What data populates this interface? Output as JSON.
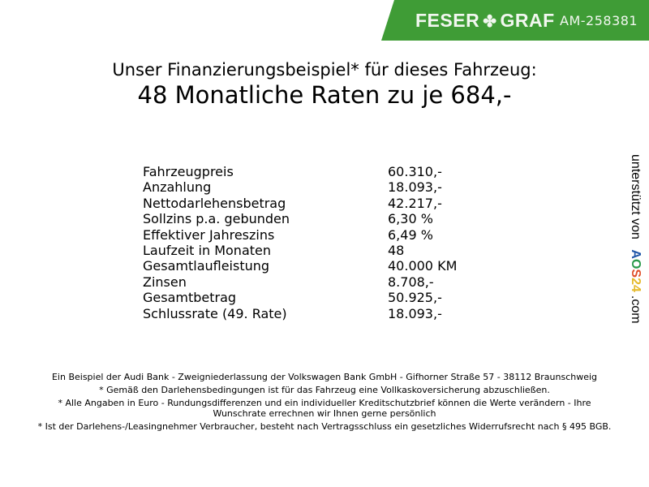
{
  "header": {
    "brand_left": "FESER",
    "brand_right": "GRAF",
    "listing_id": "AM-258381",
    "brand_color": "#3f9c36"
  },
  "title": {
    "line1": "Unser Finanzierungsbeispiel* für dieses Fahrzeug:",
    "line2": "48 Monatliche Raten zu je 684,-"
  },
  "finance": [
    {
      "label": "Fahrzeugpreis",
      "value": "60.310,-"
    },
    {
      "label": "Anzahlung",
      "value": "18.093,-"
    },
    {
      "label": "Nettodarlehensbetrag",
      "value": "42.217,-"
    },
    {
      "label": "Sollzins p.a. gebunden",
      "value": "6,30 %"
    },
    {
      "label": "Effektiver Jahreszins",
      "value": "6,49 %"
    },
    {
      "label": "Laufzeit in Monaten",
      "value": "48"
    },
    {
      "label": "Gesamtlaufleistung",
      "value": "40.000 KM"
    },
    {
      "label": "Zinsen",
      "value": "8.708,-"
    },
    {
      "label": "Gesamtbetrag",
      "value": "50.925,-"
    },
    {
      "label": "Schlussrate (49. Rate)",
      "value": "18.093,-"
    }
  ],
  "side": {
    "text": "unterstützt von",
    "logo": "AOS24",
    "suffix": ".com"
  },
  "footer": [
    "Ein Beispiel der Audi Bank - Zweigniederlassung der Volkswagen Bank GmbH - Gifhorner Straße 57 - 38112 Braunschweig",
    "* Gemäß den Darlehensbedingungen ist für das Fahrzeug eine Vollkaskoversicherung abzuschließen.",
    "* Alle Angaben in Euro - Rundungsdifferenzen und ein individueller Kreditschutzbrief können die Werte verändern - Ihre Wunschrate errechnen wir Ihnen gerne persönlich",
    "* Ist der Darlehens-/Leasingnehmer Verbraucher, besteht nach Vertragsschluss ein gesetzliches Widerrufsrecht nach § 495 BGB."
  ]
}
